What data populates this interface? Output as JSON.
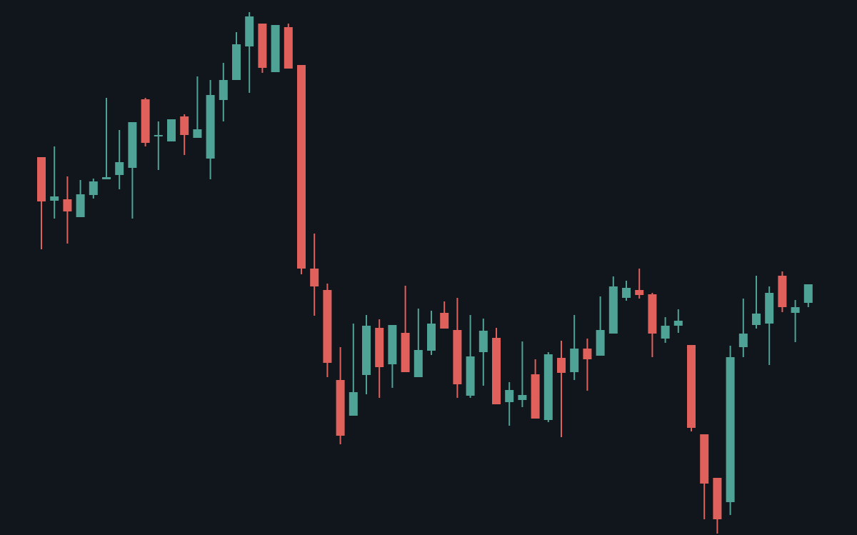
{
  "chart_data": {
    "type": "candlestick",
    "categories": [
      null,
      null,
      null,
      null,
      null,
      null,
      null,
      null,
      null,
      null,
      null,
      null,
      null,
      null,
      null,
      null,
      null,
      null,
      null,
      null,
      null,
      null,
      null,
      null,
      null,
      null,
      null,
      null,
      null,
      null,
      null,
      null,
      null,
      null,
      null,
      null,
      null,
      null,
      null,
      null,
      null,
      null,
      null,
      null,
      null,
      null,
      null,
      null,
      null,
      null,
      null,
      null,
      null,
      null,
      null,
      null,
      null,
      null,
      null,
      null
    ],
    "open": [
      52.9,
      46.8,
      47.0,
      44.5,
      47.6,
      49.8,
      50.4,
      51.4,
      61.0,
      55.8,
      55.1,
      58.6,
      55.6,
      52.7,
      60.9,
      63.7,
      68.4,
      71.6,
      64.8,
      71.1,
      65.8,
      37.3,
      34.3,
      21.7,
      16.7,
      22.4,
      29.0,
      23.9,
      28.3,
      22.1,
      25.8,
      31.1,
      28.7,
      19.5,
      25.6,
      27.6,
      18.6,
      18.9,
      22.5,
      16.1,
      24.8,
      22.8,
      26.1,
      25.1,
      28.2,
      33.2,
      34.3,
      33.7,
      27.5,
      29.3,
      26.6,
      14.1,
      8.0,
      4.6,
      26.3,
      29.4,
      29.6,
      36.3,
      31.1,
      32.5
    ],
    "high": [
      52.9,
      54.4,
      50.2,
      49.7,
      49.9,
      61.2,
      56.7,
      57.8,
      61.2,
      57.9,
      58.2,
      58.9,
      64.2,
      63.7,
      66.1,
      70.4,
      73.2,
      71.6,
      71.4,
      71.6,
      65.8,
      42.2,
      35.2,
      26.3,
      29.6,
      30.8,
      30.2,
      29.4,
      34.9,
      31.7,
      31.4,
      32.7,
      33.2,
      30.8,
      30.3,
      29.0,
      21.4,
      27.1,
      24.6,
      25.6,
      27.2,
      30.8,
      27.5,
      33.4,
      36.2,
      35.6,
      37.3,
      33.9,
      30.5,
      31.6,
      26.6,
      14.1,
      8.0,
      26.5,
      33.1,
      36.3,
      34.8,
      36.9,
      32.9,
      35.1
    ],
    "low": [
      40.0,
      44.3,
      40.8,
      44.5,
      47.1,
      49.8,
      48.4,
      44.3,
      54.4,
      51.1,
      55.1,
      53.2,
      55.6,
      49.8,
      57.9,
      63.7,
      61.9,
      64.7,
      64.8,
      65.3,
      36.5,
      30.7,
      22.1,
      12.7,
      16.7,
      19.7,
      19.2,
      20.6,
      22.8,
      22.1,
      25.2,
      28.9,
      19.2,
      19.2,
      20.9,
      18.3,
      15.3,
      17.9,
      16.3,
      15.8,
      13.7,
      21.7,
      20.2,
      25.1,
      28.2,
      32.8,
      33.1,
      24.9,
      26.9,
      28.3,
      14.5,
      2.2,
      0.2,
      2.8,
      24.9,
      28.9,
      23.8,
      31.2,
      27.0,
      31.9
    ],
    "close": [
      46.7,
      47.4,
      45.3,
      47.7,
      49.5,
      50.1,
      52.2,
      57.8,
      54.9,
      56.0,
      58.2,
      56.0,
      56.8,
      61.6,
      63.7,
      68.7,
      72.6,
      65.4,
      71.4,
      65.3,
      37.3,
      34.8,
      24.1,
      13.9,
      20.0,
      29.3,
      23.5,
      29.4,
      22.8,
      25.9,
      29.6,
      28.9,
      21.1,
      25.0,
      28.6,
      18.3,
      20.3,
      19.6,
      16.3,
      25.3,
      22.7,
      26.1,
      24.6,
      28.7,
      34.8,
      34.6,
      33.6,
      28.2,
      29.3,
      30.0,
      15.0,
      7.2,
      2.2,
      24.9,
      28.2,
      31.0,
      33.9,
      31.9,
      31.9,
      35.1
    ],
    "ylim": [
      0,
      74.9
    ],
    "up_color": "#4fa396",
    "down_color": "#e0605b",
    "grid": false
  }
}
